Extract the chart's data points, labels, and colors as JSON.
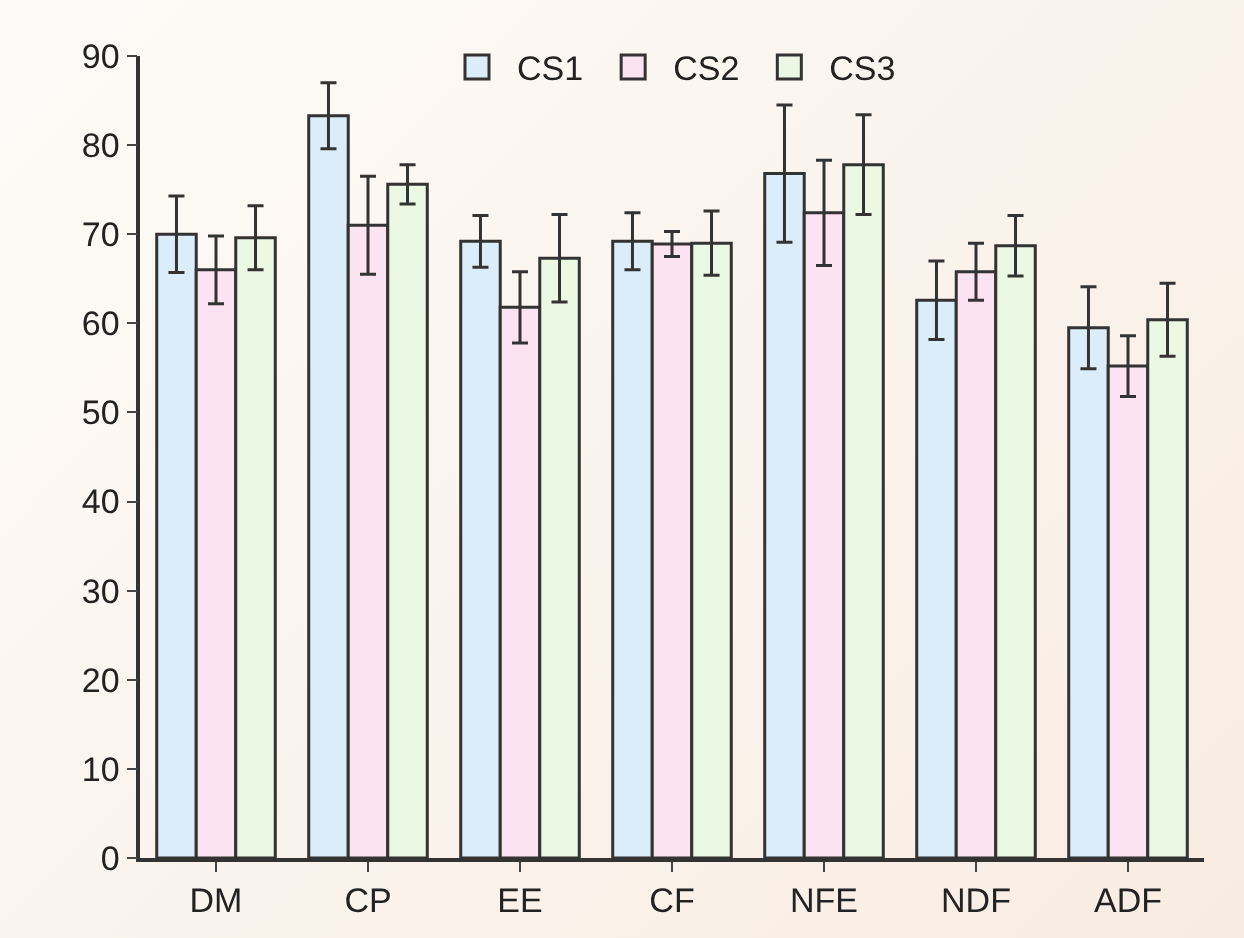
{
  "chart_data": {
    "type": "bar",
    "categories": [
      "DM",
      "CP",
      "EE",
      "CF",
      "NFE",
      "NDF",
      "ADF"
    ],
    "series": [
      {
        "name": "CS1",
        "color": "#dcedfa",
        "values": [
          70,
          83.3,
          69.2,
          69.2,
          76.8,
          62.6,
          59.5
        ],
        "errors": [
          4.3,
          3.7,
          2.9,
          3.2,
          7.7,
          4.4,
          4.6
        ]
      },
      {
        "name": "CS2",
        "color": "#fce3f1",
        "values": [
          66,
          71,
          61.8,
          68.9,
          72.4,
          65.8,
          55.2
        ],
        "errors": [
          3.8,
          5.5,
          4,
          1.4,
          5.9,
          3.2,
          3.4
        ]
      },
      {
        "name": "CS3",
        "color": "#ebf8e3",
        "values": [
          69.6,
          75.6,
          67.3,
          69,
          77.8,
          68.7,
          60.4
        ],
        "errors": [
          3.6,
          2.2,
          4.9,
          3.6,
          5.6,
          3.4,
          4.1
        ]
      }
    ],
    "ylim": [
      0,
      90
    ],
    "yticks": [
      0,
      10,
      20,
      30,
      40,
      50,
      60,
      70,
      80,
      90
    ],
    "grid": false,
    "legend": "top"
  }
}
